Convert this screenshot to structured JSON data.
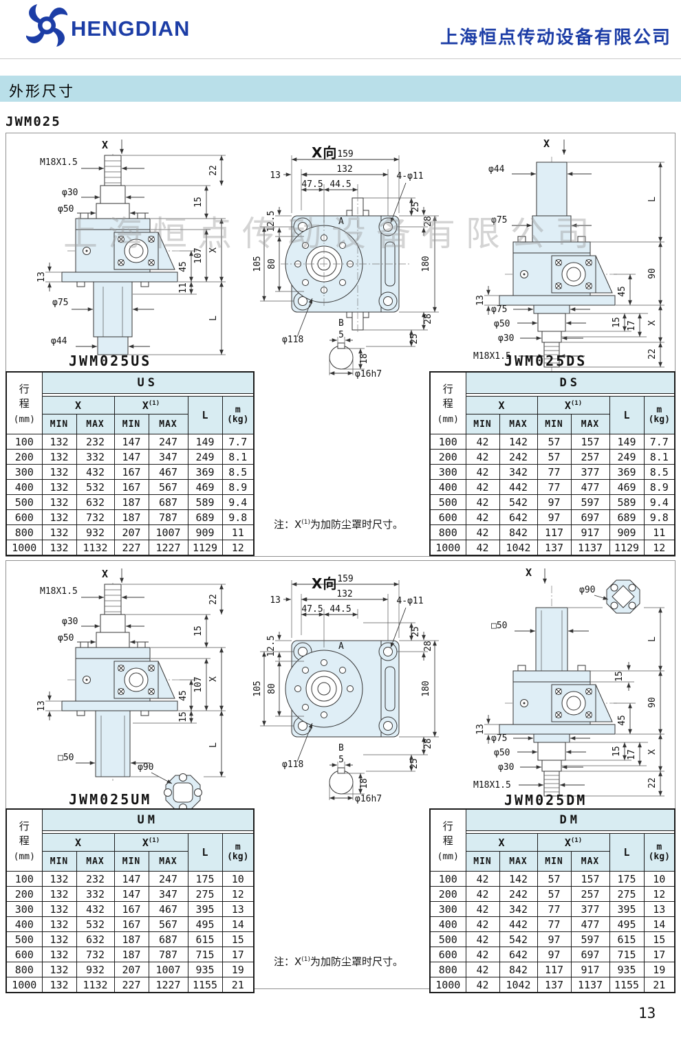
{
  "header": {
    "brand": "HENGDIAN",
    "company": "上海恒点传动设备有限公司",
    "section_title": "外形尺寸",
    "model": "JWM025"
  },
  "watermark": "上海恒点传动设备有限公司",
  "page_number": "13",
  "note": {
    "prefix": "注：X",
    "sup": "(1)",
    "suffix": "为加防尘罩时尺寸。"
  },
  "table_common": {
    "stroke_line1": "行",
    "stroke_line2": "程",
    "stroke_unit": "(mm)",
    "x": "X",
    "x1": "X",
    "x1_sup": "(1)",
    "min": "MIN",
    "max": "MAX",
    "l": "L",
    "m": "m",
    "m_unit": "(kg)"
  },
  "tables": {
    "us": {
      "title": "US",
      "rows": [
        [
          "100",
          "132",
          "232",
          "147",
          "247",
          "149",
          "7.7"
        ],
        [
          "200",
          "132",
          "332",
          "147",
          "347",
          "249",
          "8.1"
        ],
        [
          "300",
          "132",
          "432",
          "167",
          "467",
          "369",
          "8.5"
        ],
        [
          "400",
          "132",
          "532",
          "167",
          "567",
          "469",
          "8.9"
        ],
        [
          "500",
          "132",
          "632",
          "187",
          "687",
          "589",
          "9.4"
        ],
        [
          "600",
          "132",
          "732",
          "187",
          "787",
          "689",
          "9.8"
        ],
        [
          "800",
          "132",
          "932",
          "207",
          "1007",
          "909",
          "11"
        ],
        [
          "1000",
          "132",
          "1132",
          "227",
          "1227",
          "1129",
          "12"
        ]
      ]
    },
    "ds": {
      "title": "DS",
      "rows": [
        [
          "100",
          "42",
          "142",
          "57",
          "157",
          "149",
          "7.7"
        ],
        [
          "200",
          "42",
          "242",
          "57",
          "257",
          "249",
          "8.1"
        ],
        [
          "300",
          "42",
          "342",
          "77",
          "377",
          "369",
          "8.5"
        ],
        [
          "400",
          "42",
          "442",
          "77",
          "477",
          "469",
          "8.9"
        ],
        [
          "500",
          "42",
          "542",
          "97",
          "597",
          "589",
          "9.4"
        ],
        [
          "600",
          "42",
          "642",
          "97",
          "697",
          "689",
          "9.8"
        ],
        [
          "800",
          "42",
          "842",
          "117",
          "917",
          "909",
          "11"
        ],
        [
          "1000",
          "42",
          "1042",
          "137",
          "1137",
          "1129",
          "12"
        ]
      ]
    },
    "um": {
      "title": "UM",
      "rows": [
        [
          "100",
          "132",
          "232",
          "147",
          "247",
          "175",
          "10"
        ],
        [
          "200",
          "132",
          "332",
          "147",
          "347",
          "275",
          "12"
        ],
        [
          "300",
          "132",
          "432",
          "167",
          "467",
          "395",
          "13"
        ],
        [
          "400",
          "132",
          "532",
          "167",
          "567",
          "495",
          "14"
        ],
        [
          "500",
          "132",
          "632",
          "187",
          "687",
          "615",
          "15"
        ],
        [
          "600",
          "132",
          "732",
          "187",
          "787",
          "715",
          "17"
        ],
        [
          "800",
          "132",
          "932",
          "207",
          "1007",
          "935",
          "19"
        ],
        [
          "1000",
          "132",
          "1132",
          "227",
          "1227",
          "1155",
          "21"
        ]
      ]
    },
    "dm": {
      "title": "DM",
      "rows": [
        [
          "100",
          "42",
          "142",
          "57",
          "157",
          "175",
          "10"
        ],
        [
          "200",
          "42",
          "242",
          "57",
          "257",
          "275",
          "12"
        ],
        [
          "300",
          "42",
          "342",
          "77",
          "377",
          "395",
          "13"
        ],
        [
          "400",
          "42",
          "442",
          "77",
          "477",
          "495",
          "14"
        ],
        [
          "500",
          "42",
          "542",
          "97",
          "597",
          "615",
          "15"
        ],
        [
          "600",
          "42",
          "642",
          "97",
          "697",
          "715",
          "17"
        ],
        [
          "800",
          "42",
          "842",
          "117",
          "917",
          "935",
          "19"
        ],
        [
          "1000",
          "42",
          "1042",
          "137",
          "1137",
          "1155",
          "21"
        ]
      ]
    }
  },
  "drawings": {
    "x_axis": "X",
    "us": {
      "label": "JWM025US",
      "thread": "M18X1.5",
      "d30": "φ30",
      "d50": "φ50",
      "d75": "φ75",
      "d44": "φ44",
      "dim22": "22",
      "dim15": "15",
      "dimX": "X",
      "dim107": "107",
      "dim45": "45",
      "dim11": "11",
      "dim13": "13",
      "dimL": "L"
    },
    "xview": {
      "title": "X向",
      "dim159": "159",
      "dim132": "132",
      "dim13": "13",
      "dim475": "47.5",
      "dim445": "44.5",
      "holes": "4-φ11",
      "dim25": "25",
      "dim28": "28",
      "dim180": "180",
      "dim125": "12.5",
      "dim105": "105",
      "dim80": "80",
      "ptA": "A",
      "ptB": "B",
      "dia118": "φ118",
      "key5": "5",
      "key18": "18",
      "shaft": "φ16h7"
    },
    "ds": {
      "label": "JWM025DS",
      "d44": "φ44",
      "d75top": "φ75",
      "d75": "φ75",
      "d50": "φ50",
      "d30": "φ30",
      "thread": "M18X1.5",
      "dimL": "L",
      "dim90": "90",
      "dim45": "45",
      "dim13": "13",
      "dim15": "15",
      "dim17": "17",
      "dimX": "X",
      "dim22": "22"
    },
    "um": {
      "label": "JWM025UM",
      "thread": "M18X1.5",
      "d30": "φ30",
      "d50": "φ50",
      "sq50": "□50",
      "d90": "φ90",
      "dim22": "22",
      "dim15a": "15",
      "dimX": "X",
      "dim107": "107",
      "dim45": "45",
      "dim13": "13",
      "dim15b": "15",
      "dimL": "L"
    },
    "dm": {
      "label": "JWM025DM",
      "sq50": "□50",
      "d90": "φ90",
      "d75": "φ75",
      "d50": "φ50",
      "d30": "φ30",
      "thread": "M18X1.5",
      "dimL": "L",
      "dim15a": "15",
      "dim90": "90",
      "dim45": "45",
      "dim13": "13",
      "dim15b": "15",
      "dim17": "17",
      "dimX": "X",
      "dim22": "22"
    }
  }
}
